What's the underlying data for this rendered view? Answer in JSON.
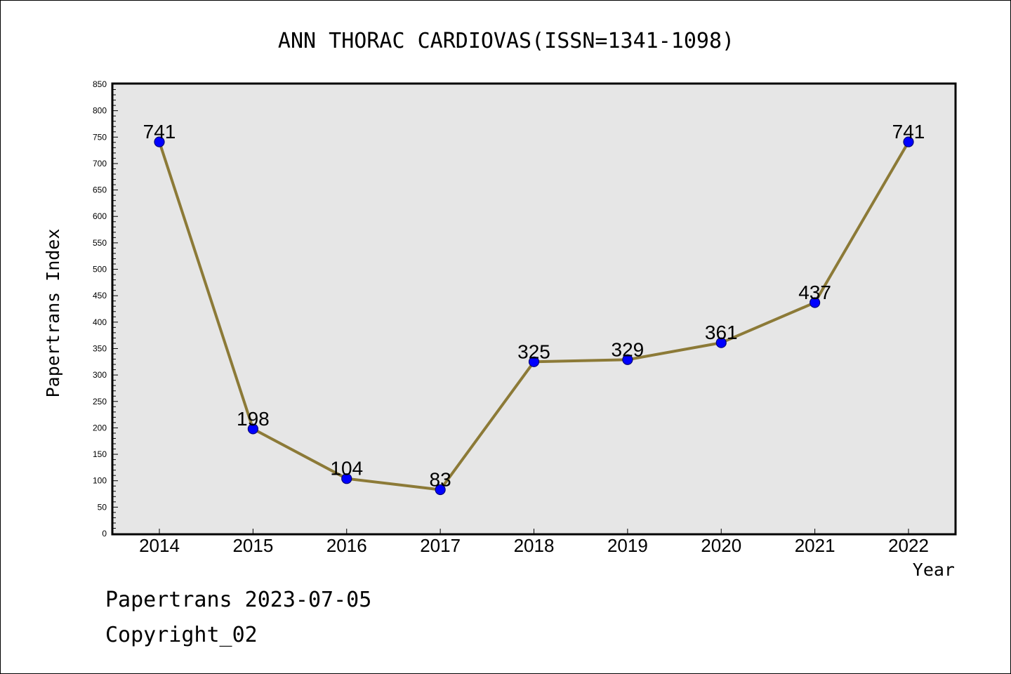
{
  "chart_data": {
    "type": "line",
    "title": "ANN THORAC CARDIOVAS(ISSN=1341-1098)",
    "xlabel": "Year",
    "ylabel": "Papertrans Index",
    "categories": [
      "2014",
      "2015",
      "2016",
      "2017",
      "2018",
      "2019",
      "2020",
      "2021",
      "2022"
    ],
    "series": [
      {
        "values": [
          741,
          198,
          104,
          83,
          325,
          329,
          361,
          437,
          741
        ]
      }
    ],
    "data_labels": true,
    "ylim": [
      0,
      850
    ],
    "yticks": [
      0,
      50,
      100,
      150,
      200,
      250,
      300,
      350,
      400,
      450,
      500,
      550,
      600,
      650,
      700,
      750,
      800,
      850
    ],
    "grid": false,
    "colors": {
      "line": "#8c7a37",
      "marker": "#0000ff",
      "marker_edge": "#00007a",
      "plot_background": "#e6e6e6"
    }
  },
  "footer": {
    "source_line": "Papertrans 2023-07-05",
    "copyright": "Copyright_02"
  }
}
